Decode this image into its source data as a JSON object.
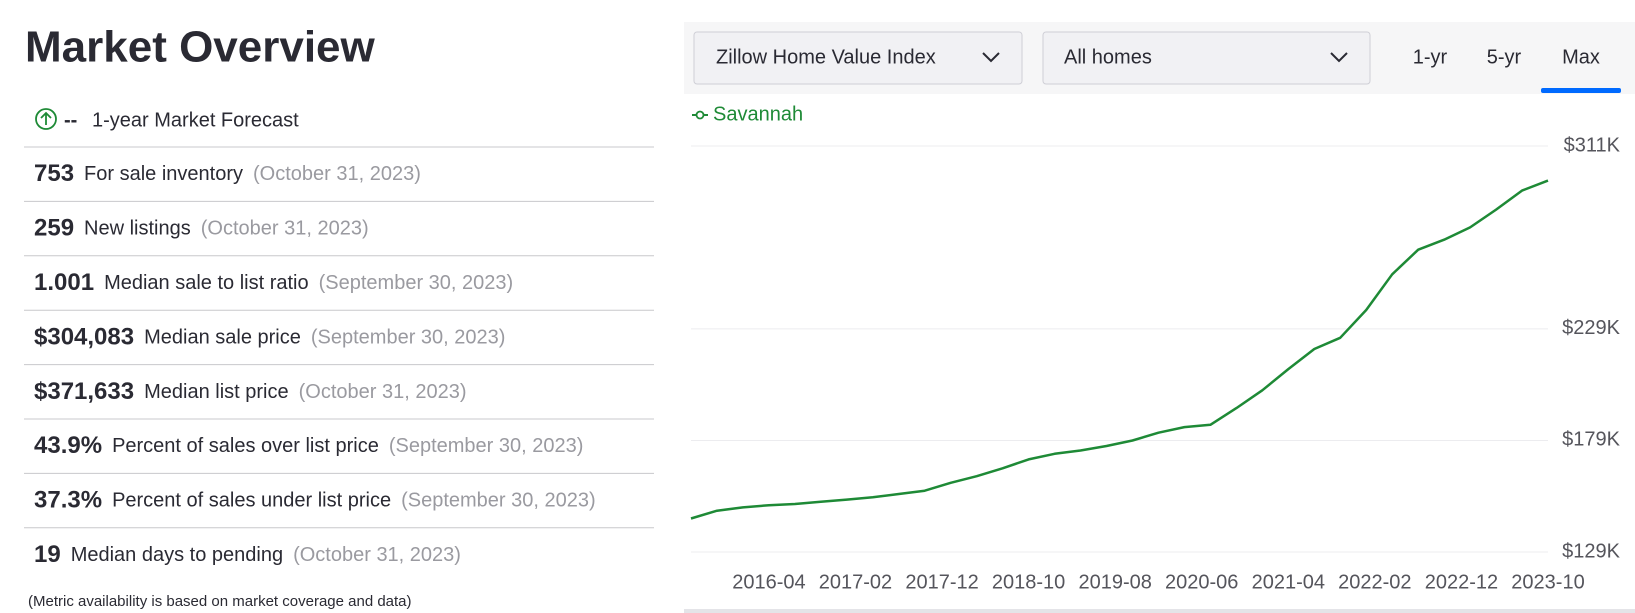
{
  "header": {
    "title": "Market Overview"
  },
  "forecast": {
    "value": "--",
    "label": "1-year Market Forecast"
  },
  "metrics": [
    {
      "value": "753",
      "label": "For sale inventory",
      "date": "(October 31, 2023)"
    },
    {
      "value": "259",
      "label": "New listings",
      "date": "(October 31, 2023)"
    },
    {
      "value": "1.001",
      "label": "Median sale to list ratio",
      "date": "(September 30, 2023)"
    },
    {
      "value": "$304,083",
      "label": "Median sale price",
      "date": "(September 30, 2023)"
    },
    {
      "value": "$371,633",
      "label": "Median list price",
      "date": "(October 31, 2023)"
    },
    {
      "value": "43.9%",
      "label": "Percent of sales over list price",
      "date": "(September 30, 2023)"
    },
    {
      "value": "37.3%",
      "label": "Percent of sales under list price",
      "date": "(September 30, 2023)"
    },
    {
      "value": "19",
      "label": "Median days to pending",
      "date": "(October 31, 2023)"
    }
  ],
  "footnote": "(Metric availability is based on market coverage and data)",
  "controls": {
    "index_select": "Zillow Home Value Index",
    "home_type_select": "All homes",
    "ranges": [
      "1-yr",
      "5-yr",
      "Max"
    ],
    "active_range": 2
  },
  "chart_data": {
    "type": "line",
    "x": [
      "2015-07",
      "2015-10",
      "2016-01",
      "2016-04",
      "2016-07",
      "2016-10",
      "2017-01",
      "2017-04",
      "2017-07",
      "2017-10",
      "2018-01",
      "2018-04",
      "2018-07",
      "2018-10",
      "2019-01",
      "2019-04",
      "2019-07",
      "2019-10",
      "2020-01",
      "2020-04",
      "2020-07",
      "2020-10",
      "2021-01",
      "2021-04",
      "2021-07",
      "2021-10",
      "2022-01",
      "2022-04",
      "2022-07",
      "2022-10",
      "2023-01",
      "2023-04",
      "2023-07",
      "2023-10"
    ],
    "series": [
      {
        "name": "Savannah",
        "color": "#1e8a36",
        "values": [
          144000,
          147500,
          149000,
          150000,
          150500,
          151500,
          152500,
          153500,
          155000,
          156500,
          160000,
          163000,
          166500,
          170500,
          173000,
          174500,
          176500,
          179000,
          182500,
          185000,
          186000,
          193500,
          201500,
          211000,
          220000,
          225000,
          237500,
          253500,
          264500,
          269000,
          274500,
          282500,
          291000,
          295500
        ]
      }
    ],
    "xlim": [
      "2015-07",
      "2023-10"
    ],
    "xticks": [
      "2016-04",
      "2017-02",
      "2017-12",
      "2018-10",
      "2019-08",
      "2020-06",
      "2021-04",
      "2022-02",
      "2022-12",
      "2023-10"
    ],
    "ylim": [
      129000,
      311000
    ],
    "yticks": [
      {
        "value": 129000,
        "label": "$129K"
      },
      {
        "value": 179000,
        "label": "$179K"
      },
      {
        "value": 229000,
        "label": "$229K"
      },
      {
        "value": 311000,
        "label": "$311K"
      }
    ],
    "grid": true
  }
}
